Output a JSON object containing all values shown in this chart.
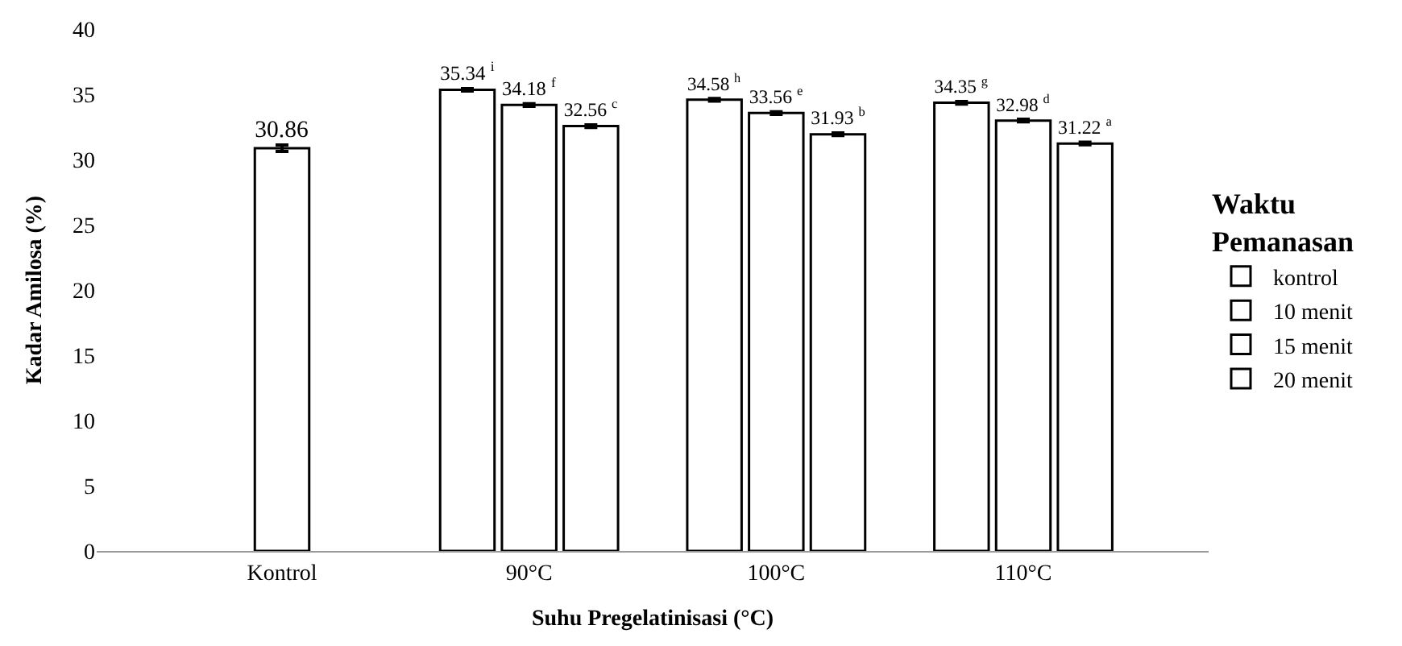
{
  "chart_data": {
    "type": "bar",
    "xlabel": "Suhu Pregelatinisasi (°C)",
    "ylabel": "Kadar Amilosa (%)",
    "legend_title": "Waktu Pemanasan",
    "categories": [
      "Kontrol",
      "90°C",
      "100°C",
      "110°C"
    ],
    "series": [
      {
        "name": "kontrol",
        "color": "#ffffff",
        "values": [
          30.86,
          null,
          null,
          null
        ],
        "errors": [
          0.25,
          null,
          null,
          null
        ],
        "value_labels": [
          "30.86",
          null,
          null,
          null
        ]
      },
      {
        "name": "10 menit",
        "color": "#ffffff",
        "values": [
          null,
          35.34,
          34.58,
          34.35
        ],
        "errors": [
          null,
          0.1,
          0.1,
          0.1
        ],
        "value_labels": [
          null,
          "35.34$^{i}$",
          "34.58$^{h}$",
          "34.35$^{g}$"
        ]
      },
      {
        "name": "15 menit",
        "color": "#ffffff",
        "values": [
          null,
          34.18,
          33.56,
          32.98
        ],
        "errors": [
          null,
          0.1,
          0.1,
          0.1
        ],
        "value_labels": [
          null,
          "34.18$^{f}$",
          "33.56$^{e}$",
          "32.98$^{d}$"
        ]
      },
      {
        "name": "20 menit",
        "color": "#ffffff",
        "values": [
          null,
          32.56,
          31.93,
          31.22
        ],
        "errors": [
          null,
          0.1,
          0.1,
          0.1
        ],
        "value_labels": [
          null,
          "32.56$^{c}$",
          "31.93$^{b}$",
          "31.22$^{a}$"
        ]
      }
    ],
    "ylim": [
      0,
      40
    ],
    "yticks": [
      0,
      5,
      10,
      15,
      20,
      25,
      30,
      35,
      40
    ],
    "grid": false,
    "legend": "right"
  }
}
